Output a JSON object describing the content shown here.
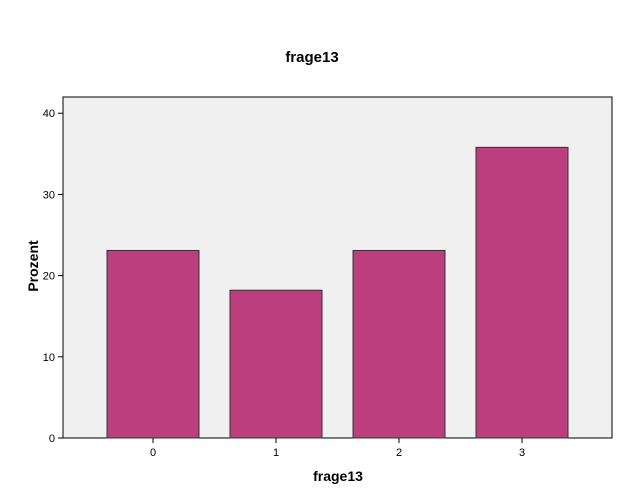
{
  "chart_data": {
    "type": "bar",
    "title": "frage13",
    "x_label": "frage13",
    "y_label": "Prozent",
    "categories": [
      "0",
      "1",
      "2",
      "3"
    ],
    "values": [
      23.1,
      18.2,
      23.1,
      35.8
    ],
    "color": "#bb3f7d",
    "ylim": [
      0,
      42
    ],
    "yticks": [
      0,
      10,
      20,
      30,
      40
    ],
    "grid": false
  }
}
